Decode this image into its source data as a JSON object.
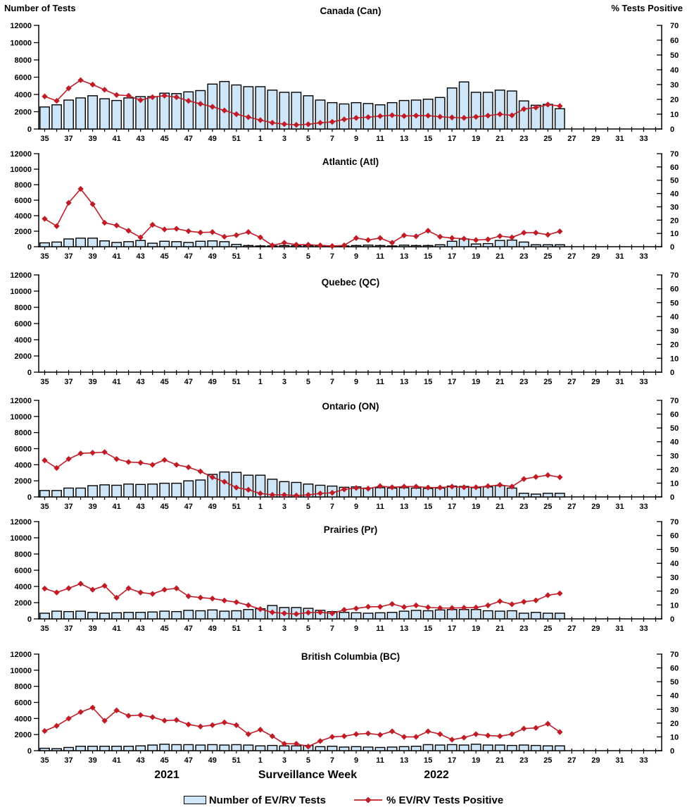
{
  "axes": {
    "left_title": "Number of Tests",
    "right_title": "% Tests Positive"
  },
  "footer": {
    "year_left": "2021",
    "x_axis_label": "Surveillance Week",
    "year_right": "2022"
  },
  "legend": [
    {
      "swatch": "bar",
      "label": "Number of EV/RV Tests"
    },
    {
      "swatch": "line-diamond",
      "label": "% EV/RV Tests Positive"
    }
  ],
  "colors": {
    "bar_fill": "#CEE6F7",
    "bar_stroke": "#000000",
    "line": "#C11B26",
    "axis": "#000000"
  },
  "chart_data": [
    {
      "type": "combo",
      "title": "Canada (Can)",
      "categories": [
        "35",
        "36",
        "37",
        "38",
        "39",
        "40",
        "41",
        "42",
        "43",
        "44",
        "45",
        "46",
        "47",
        "48",
        "49",
        "50",
        "51",
        "52",
        "1",
        "2",
        "3",
        "4",
        "5",
        "6",
        "7",
        "8",
        "9",
        "10",
        "11",
        "12",
        "13",
        "14",
        "15",
        "16",
        "17",
        "18",
        "19",
        "20",
        "21",
        "22",
        "23",
        "24",
        "25",
        "26",
        "27",
        "28",
        "29",
        "30",
        "31",
        "32",
        "33",
        "34"
      ],
      "y_left": {
        "label": "Number of Tests",
        "min": 0,
        "max": 12000,
        "step": 2000
      },
      "y_right": {
        "label": "% Tests Positive",
        "min": 0,
        "max": 70,
        "step": 10
      },
      "series": [
        {
          "name": "Number of EV/RV Tests",
          "type": "bar",
          "axis": "left",
          "values": [
            2550,
            2800,
            3350,
            3600,
            3850,
            3500,
            3300,
            3600,
            3750,
            3750,
            4150,
            4100,
            4300,
            4450,
            5200,
            5500,
            5100,
            4900,
            4900,
            4500,
            4250,
            4250,
            3850,
            3350,
            3050,
            2900,
            3050,
            2950,
            2800,
            3050,
            3300,
            3350,
            3450,
            3650,
            4750,
            5450,
            4250,
            4250,
            4500,
            4400,
            3250,
            2750,
            2850,
            2350,
            null,
            null,
            null,
            null,
            null,
            null,
            null,
            null
          ]
        },
        {
          "name": "% EV/RV Tests Positive",
          "type": "line",
          "axis": "right",
          "values": [
            22,
            19,
            27.5,
            33,
            30,
            26.5,
            23,
            22.5,
            19.5,
            21.5,
            22.5,
            21.5,
            19,
            17,
            15,
            12.5,
            10,
            8,
            6,
            4.2,
            3.3,
            2.8,
            3.2,
            4.2,
            4.8,
            6.5,
            7.5,
            8,
            8.7,
            9.3,
            8.7,
            9,
            9,
            8.3,
            7.8,
            7.5,
            8.2,
            9,
            10,
            9.2,
            13.5,
            14.5,
            16.5,
            15.5,
            null,
            null,
            null,
            null,
            null,
            null,
            null,
            null
          ]
        }
      ]
    },
    {
      "type": "combo",
      "title": "Atlantic (Atl)",
      "categories": [
        "35",
        "36",
        "37",
        "38",
        "39",
        "40",
        "41",
        "42",
        "43",
        "44",
        "45",
        "46",
        "47",
        "48",
        "49",
        "50",
        "51",
        "52",
        "1",
        "2",
        "3",
        "4",
        "5",
        "6",
        "7",
        "8",
        "9",
        "10",
        "11",
        "12",
        "13",
        "14",
        "15",
        "16",
        "17",
        "18",
        "19",
        "20",
        "21",
        "22",
        "23",
        "24",
        "25",
        "26",
        "27",
        "28",
        "29",
        "30",
        "31",
        "32",
        "33",
        "34"
      ],
      "y_left": {
        "label": "Number of Tests",
        "min": 0,
        "max": 12000,
        "step": 2000
      },
      "y_right": {
        "label": "% Tests Positive",
        "min": 0,
        "max": 70,
        "step": 10
      },
      "series": [
        {
          "name": "Number of EV/RV Tests",
          "type": "bar",
          "axis": "left",
          "values": [
            500,
            600,
            1000,
            1100,
            1100,
            750,
            550,
            650,
            800,
            450,
            700,
            650,
            550,
            700,
            750,
            650,
            300,
            150,
            100,
            100,
            150,
            150,
            150,
            150,
            100,
            100,
            150,
            200,
            150,
            100,
            200,
            150,
            150,
            250,
            700,
            1000,
            350,
            400,
            800,
            850,
            600,
            250,
            250,
            250,
            null,
            null,
            null,
            null,
            null,
            null,
            null,
            null
          ]
        },
        {
          "name": "% EV/RV Tests Positive",
          "type": "line",
          "axis": "right",
          "values": [
            21,
            15.5,
            33,
            43.5,
            32,
            18,
            16,
            12,
            7,
            16.5,
            13,
            13.5,
            11.7,
            10.7,
            11,
            7.5,
            8.7,
            11,
            7,
            1,
            3,
            1.5,
            1.5,
            1,
            0.5,
            1,
            6.5,
            5,
            6.5,
            3,
            8.5,
            7.8,
            12,
            7.5,
            6.5,
            6,
            5,
            5.5,
            8,
            7,
            10.5,
            10.5,
            9,
            11.5,
            null,
            null,
            null,
            null,
            null,
            null,
            null,
            null
          ]
        }
      ]
    },
    {
      "type": "combo",
      "title": "Quebec (QC)",
      "categories": [
        "35",
        "36",
        "37",
        "38",
        "39",
        "40",
        "41",
        "42",
        "43",
        "44",
        "45",
        "46",
        "47",
        "48",
        "49",
        "50",
        "51",
        "52",
        "1",
        "2",
        "3",
        "4",
        "5",
        "6",
        "7",
        "8",
        "9",
        "10",
        "11",
        "12",
        "13",
        "14",
        "15",
        "16",
        "17",
        "18",
        "19",
        "20",
        "21",
        "22",
        "23",
        "24",
        "25",
        "26",
        "27",
        "28",
        "29",
        "30",
        "31",
        "32",
        "33",
        "34"
      ],
      "y_left": {
        "label": "Number of Tests",
        "min": 0,
        "max": 12000,
        "step": 2000
      },
      "y_right": {
        "label": "% Tests Positive",
        "min": 0,
        "max": 70,
        "step": 10
      },
      "series": [
        {
          "name": "Number of EV/RV Tests",
          "type": "bar",
          "axis": "left",
          "values": [
            null,
            null,
            null,
            null,
            null,
            null,
            null,
            null,
            null,
            null,
            null,
            null,
            null,
            null,
            null,
            null,
            null,
            null,
            null,
            null,
            null,
            null,
            null,
            null,
            null,
            null,
            null,
            null,
            null,
            null,
            null,
            null,
            null,
            null,
            null,
            null,
            null,
            null,
            null,
            null,
            null,
            null,
            null,
            null,
            null,
            null,
            null,
            null,
            null,
            null,
            null,
            null
          ]
        },
        {
          "name": "% EV/RV Tests Positive",
          "type": "line",
          "axis": "right",
          "values": [
            null,
            null,
            null,
            null,
            null,
            null,
            null,
            null,
            null,
            null,
            null,
            null,
            null,
            null,
            null,
            null,
            null,
            null,
            null,
            null,
            null,
            null,
            null,
            null,
            null,
            null,
            null,
            null,
            null,
            null,
            null,
            null,
            null,
            null,
            null,
            null,
            null,
            null,
            null,
            null,
            null,
            null,
            null,
            null,
            null,
            null,
            null,
            null,
            null,
            null,
            null,
            null
          ]
        }
      ]
    },
    {
      "type": "combo",
      "title": "Ontario (ON)",
      "categories": [
        "35",
        "36",
        "37",
        "38",
        "39",
        "40",
        "41",
        "42",
        "43",
        "44",
        "45",
        "46",
        "47",
        "48",
        "49",
        "50",
        "51",
        "52",
        "1",
        "2",
        "3",
        "4",
        "5",
        "6",
        "7",
        "8",
        "9",
        "10",
        "11",
        "12",
        "13",
        "14",
        "15",
        "16",
        "17",
        "18",
        "19",
        "20",
        "21",
        "22",
        "23",
        "24",
        "25",
        "26",
        "27",
        "28",
        "29",
        "30",
        "31",
        "32",
        "33",
        "34"
      ],
      "y_left": {
        "label": "Number of Tests",
        "min": 0,
        "max": 12000,
        "step": 2000
      },
      "y_right": {
        "label": "% Tests Positive",
        "min": 0,
        "max": 70,
        "step": 10
      },
      "series": [
        {
          "name": "Number of EV/RV Tests",
          "type": "bar",
          "axis": "left",
          "values": [
            800,
            800,
            1100,
            1100,
            1400,
            1500,
            1450,
            1600,
            1550,
            1600,
            1700,
            1700,
            2000,
            2100,
            2800,
            3100,
            3050,
            2700,
            2700,
            2200,
            1900,
            1800,
            1600,
            1450,
            1350,
            1200,
            1250,
            1100,
            1150,
            1100,
            1150,
            1100,
            1050,
            1100,
            1350,
            1300,
            1150,
            1250,
            1400,
            1100,
            450,
            350,
            450,
            450,
            null,
            null,
            null,
            null,
            null,
            null,
            null,
            null
          ]
        },
        {
          "name": "% EV/RV Tests Positive",
          "type": "line",
          "axis": "right",
          "values": [
            26.5,
            21,
            27.5,
            31.5,
            32,
            32.5,
            27.5,
            25.3,
            24.8,
            23.3,
            26.8,
            23.3,
            21.5,
            18.5,
            14.3,
            11,
            6.8,
            5.2,
            2.5,
            1.5,
            1.5,
            1,
            1.5,
            2.5,
            3,
            5.5,
            6.5,
            6,
            7.8,
            7,
            7.5,
            7.5,
            6.8,
            6.8,
            7.5,
            7,
            7,
            7.8,
            8.7,
            7.5,
            13,
            14.5,
            15.8,
            14.3,
            null,
            null,
            null,
            null,
            null,
            null,
            null,
            null
          ]
        }
      ]
    },
    {
      "type": "combo",
      "title": "Prairies (Pr)",
      "categories": [
        "35",
        "36",
        "37",
        "38",
        "39",
        "40",
        "41",
        "42",
        "43",
        "44",
        "45",
        "46",
        "47",
        "48",
        "49",
        "50",
        "51",
        "52",
        "1",
        "2",
        "3",
        "4",
        "5",
        "6",
        "7",
        "8",
        "9",
        "10",
        "11",
        "12",
        "13",
        "14",
        "15",
        "16",
        "17",
        "18",
        "19",
        "20",
        "21",
        "22",
        "23",
        "24",
        "25",
        "26",
        "27",
        "28",
        "29",
        "30",
        "31",
        "32",
        "33",
        "34"
      ],
      "y_left": {
        "label": "Number of Tests",
        "min": 0,
        "max": 12000,
        "step": 2000
      },
      "y_right": {
        "label": "% Tests Positive",
        "min": 0,
        "max": 70,
        "step": 10
      },
      "series": [
        {
          "name": "Number of EV/RV Tests",
          "type": "bar",
          "axis": "left",
          "values": [
            700,
            950,
            900,
            950,
            800,
            700,
            750,
            800,
            800,
            850,
            950,
            900,
            1050,
            1000,
            1100,
            950,
            1000,
            1150,
            1250,
            1650,
            1400,
            1400,
            1300,
            1050,
            900,
            800,
            750,
            700,
            750,
            800,
            950,
            1050,
            1000,
            1100,
            1150,
            1150,
            1150,
            1000,
            950,
            1000,
            700,
            800,
            700,
            700,
            null,
            null,
            null,
            null,
            null,
            null,
            null,
            null
          ]
        },
        {
          "name": "% EV/RV Tests Positive",
          "type": "line",
          "axis": "right",
          "values": [
            21.8,
            19,
            22,
            25.3,
            21,
            23.8,
            15.2,
            22,
            19,
            18,
            21,
            22,
            16.3,
            15.3,
            14.6,
            13.2,
            12,
            9.8,
            7,
            4.7,
            4,
            3.5,
            4.5,
            4.7,
            4,
            6.5,
            7.5,
            8.7,
            8.7,
            10.7,
            8.5,
            9.7,
            8.3,
            7.8,
            7.8,
            8,
            8.2,
            9.7,
            12.7,
            10.5,
            12.3,
            13.3,
            17,
            18.3,
            null,
            null,
            null,
            null,
            null,
            null,
            null,
            null
          ]
        }
      ]
    },
    {
      "type": "combo",
      "title": "British Columbia (BC)",
      "categories": [
        "35",
        "36",
        "37",
        "38",
        "39",
        "40",
        "41",
        "42",
        "43",
        "44",
        "45",
        "46",
        "47",
        "48",
        "49",
        "50",
        "51",
        "52",
        "1",
        "2",
        "3",
        "4",
        "5",
        "6",
        "7",
        "8",
        "9",
        "10",
        "11",
        "12",
        "13",
        "14",
        "15",
        "16",
        "17",
        "18",
        "19",
        "20",
        "21",
        "22",
        "23",
        "24",
        "25",
        "26",
        "27",
        "28",
        "29",
        "30",
        "31",
        "32",
        "33",
        "34"
      ],
      "y_left": {
        "label": "Number of Tests",
        "min": 0,
        "max": 12000,
        "step": 2000
      },
      "y_right": {
        "label": "% Tests Positive",
        "min": 0,
        "max": 70,
        "step": 10
      },
      "series": [
        {
          "name": "Number of EV/RV Tests",
          "type": "bar",
          "axis": "left",
          "values": [
            300,
            250,
            400,
            550,
            550,
            550,
            550,
            550,
            600,
            700,
            800,
            750,
            750,
            700,
            750,
            700,
            750,
            700,
            600,
            650,
            600,
            600,
            650,
            500,
            550,
            450,
            500,
            450,
            400,
            450,
            500,
            550,
            750,
            700,
            750,
            700,
            800,
            700,
            700,
            650,
            700,
            650,
            600,
            600,
            null,
            null,
            null,
            null,
            null,
            null,
            null,
            null
          ]
        },
        {
          "name": "% EV/RV Tests Positive",
          "type": "line",
          "axis": "right",
          "values": [
            14.3,
            18,
            23.3,
            28,
            31.2,
            21.7,
            29.2,
            25.3,
            25.8,
            24.3,
            21.8,
            22.2,
            19,
            17.5,
            18.5,
            20.5,
            18.5,
            12,
            15.2,
            10.5,
            5,
            5,
            3,
            7,
            10,
            10.5,
            12,
            12.5,
            11.5,
            14,
            10,
            10,
            14,
            12,
            8,
            9.5,
            12,
            11,
            10.5,
            12,
            16,
            16.5,
            19.5,
            13.5,
            null,
            null,
            null,
            null,
            null,
            null,
            null,
            null
          ]
        }
      ]
    }
  ]
}
